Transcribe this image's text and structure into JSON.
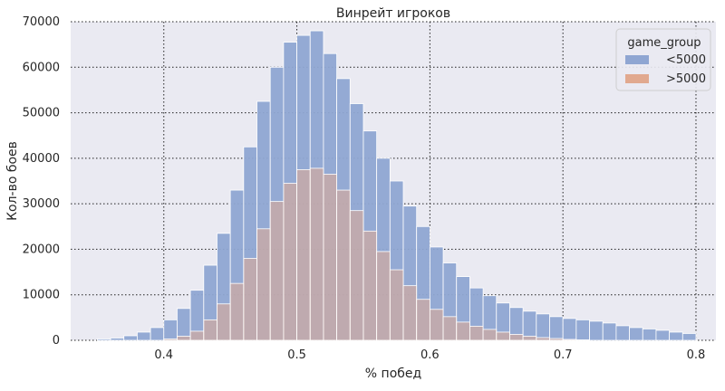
{
  "chart_data": {
    "type": "bar",
    "title": "Винрейт игроков",
    "xlabel": "% побед",
    "ylabel": "Кол-во боев",
    "xlim": [
      0.33,
      0.815
    ],
    "ylim": [
      0,
      70000
    ],
    "xticks": [
      0.4,
      0.5,
      0.6,
      0.7,
      0.8
    ],
    "xtick_labels": [
      "0.4",
      "0.5",
      "0.6",
      "0.7",
      "0.8"
    ],
    "yticks": [
      0,
      10000,
      20000,
      30000,
      40000,
      50000,
      60000,
      70000
    ],
    "ytick_labels": [
      "0",
      "10000",
      "20000",
      "30000",
      "40000",
      "50000",
      "60000",
      "70000"
    ],
    "grid": true,
    "legend": {
      "title": "game_group",
      "placement": "top-right",
      "entries": [
        "<5000",
        ">5000"
      ]
    },
    "bin_width": 0.01,
    "bin_starts": [
      0.35,
      0.36,
      0.37,
      0.38,
      0.39,
      0.4,
      0.41,
      0.42,
      0.43,
      0.44,
      0.45,
      0.46,
      0.47,
      0.48,
      0.49,
      0.5,
      0.51,
      0.52,
      0.53,
      0.54,
      0.55,
      0.56,
      0.57,
      0.58,
      0.59,
      0.6,
      0.61,
      0.62,
      0.63,
      0.64,
      0.65,
      0.66,
      0.67,
      0.68,
      0.69,
      0.7,
      0.71,
      0.72,
      0.73,
      0.74,
      0.75,
      0.76,
      0.77,
      0.78,
      0.79
    ],
    "series": [
      {
        "name": "<5000",
        "color": "#8fa6d2",
        "values": [
          300,
          500,
          1000,
          1800,
          2800,
          4500,
          7000,
          11000,
          16500,
          23500,
          33000,
          42500,
          52500,
          60000,
          65500,
          67000,
          68000,
          63000,
          57500,
          52000,
          46000,
          40000,
          35000,
          29500,
          25000,
          20500,
          17000,
          14000,
          11500,
          9800,
          8200,
          7200,
          6400,
          5800,
          5200,
          4800,
          4500,
          4200,
          3800,
          3200,
          2800,
          2500,
          2200,
          1800,
          1500
        ]
      },
      {
        "name": ">5000",
        "color": "#e1a98f",
        "values": [
          0,
          0,
          0,
          0,
          0,
          300,
          900,
          2000,
          4500,
          8000,
          12500,
          18000,
          24500,
          30500,
          34500,
          37500,
          37800,
          36500,
          33000,
          28500,
          24000,
          19500,
          15500,
          12000,
          9000,
          6800,
          5200,
          4000,
          3100,
          2400,
          1800,
          1300,
          900,
          600,
          400,
          200,
          100,
          0,
          0,
          0,
          0,
          0,
          0,
          0,
          0
        ]
      }
    ]
  }
}
